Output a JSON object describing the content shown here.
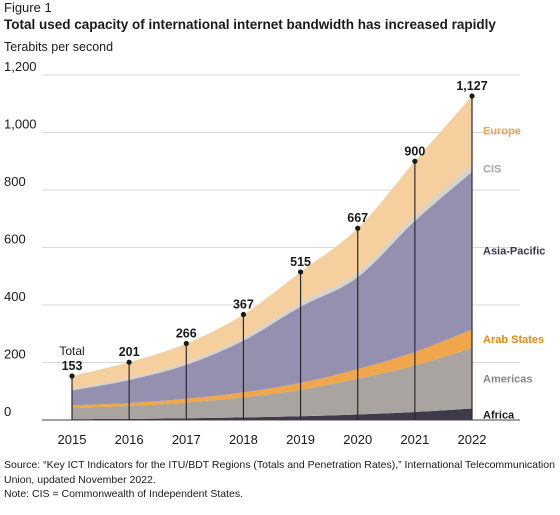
{
  "figure_label": "Figure 1",
  "title": "Total used capacity of international internet bandwidth has increased rapidly",
  "unit_label": "Terabits per second",
  "source": "Source: “Key ICT Indicators for the ITU/BDT Regions (Totals and Penetration Rates),” International Telecommunication Union, updated November 2022.",
  "note": "Note: CIS = Commonwealth of Independent States.",
  "chart_data": {
    "type": "area",
    "stacked": true,
    "x": [
      "2015",
      "2016",
      "2017",
      "2018",
      "2019",
      "2020",
      "2021",
      "2022"
    ],
    "ylim": [
      0,
      1200
    ],
    "yticks": [
      "0",
      "200",
      "400",
      "600",
      "800",
      "1,000",
      "1,200"
    ],
    "ytick_values": [
      0,
      200,
      400,
      600,
      800,
      1000,
      1200
    ],
    "grid": true,
    "total_word": "Total",
    "totals": [
      153,
      201,
      266,
      367,
      515,
      667,
      900,
      1127
    ],
    "total_labels": [
      "153",
      "201",
      "266",
      "367",
      "515",
      "667",
      "900",
      "1,127"
    ],
    "series": [
      {
        "name": "Africa",
        "color": "#3f3a4a",
        "values": [
          3,
          4,
          6,
          9,
          13,
          19,
          28,
          40
        ]
      },
      {
        "name": "Americas",
        "color": "#a9a49f",
        "values": [
          40,
          45,
          55,
          70,
          92,
          125,
          162,
          210
        ]
      },
      {
        "name": "Arab States",
        "color": "#f0a64a",
        "values": [
          8,
          10,
          13,
          17,
          24,
          33,
          47,
          65
        ]
      },
      {
        "name": "Asia-Pacific",
        "color": "#9690b0",
        "values": [
          52,
          80,
          118,
          180,
          265,
          320,
          455,
          548
        ]
      },
      {
        "name": "CIS",
        "color": "#d6d2cc",
        "values": [
          5,
          7,
          9,
          11,
          14,
          16,
          20,
          24
        ]
      },
      {
        "name": "Europe",
        "color": "#f5cf9e",
        "values": [
          45,
          55,
          65,
          80,
          107,
          154,
          188,
          240
        ]
      }
    ],
    "legend_colors": {
      "Africa": "#1a1a1a",
      "Americas": "#8a8580",
      "Arab States": "#e08a12",
      "Asia-Pacific": "#3a3550",
      "CIS": "#a9a49f",
      "Europe": "#e2a65a"
    }
  }
}
